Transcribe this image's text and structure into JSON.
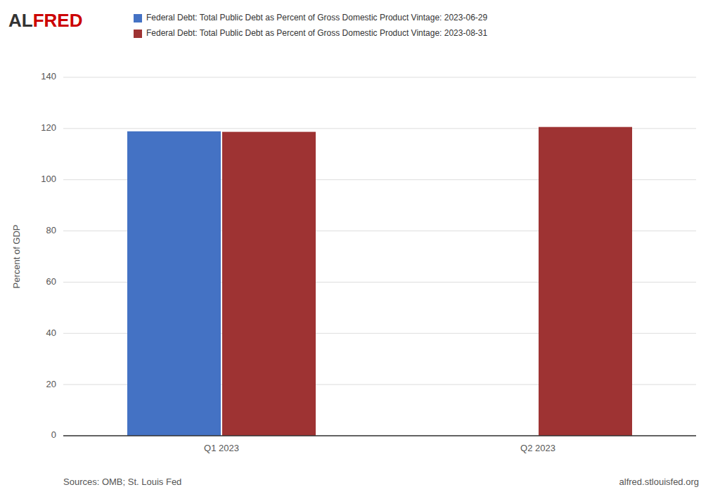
{
  "chart_data": {
    "type": "bar",
    "y_label": "Percent of GDP",
    "annotations": [
      "AL",
      "FRED",
      "Sources: OMB; St. Louis Fed",
      "alfred.stlouisfed.org"
    ],
    "categories": [
      "Q1 2023",
      "Q2 2023"
    ],
    "series": [
      {
        "name": "Federal Debt: Total Public Debt as Percent of Gross Domestic Product Vintage: 2023-06-29",
        "color": "#4472c4",
        "values": [
          118.9,
          null
        ]
      },
      {
        "name": "Federal Debt: Total Public Debt as Percent of Gross Domestic Product Vintage: 2023-08-31",
        "color": "#9e3333",
        "values": [
          118.7,
          120.6
        ]
      }
    ],
    "ylim": [
      0,
      140
    ],
    "yticks": [
      0,
      20,
      40,
      60,
      80,
      100,
      120,
      140
    ],
    "grid": true,
    "legend": "top-left"
  }
}
